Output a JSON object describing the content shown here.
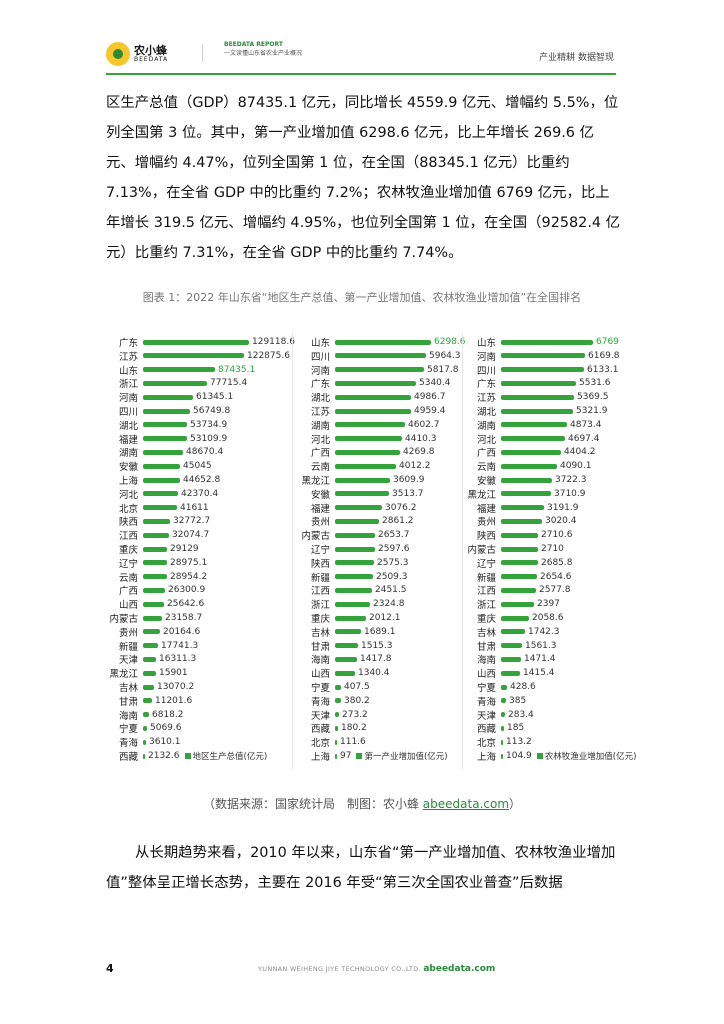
{
  "header": {
    "logo_cn": "农小蜂",
    "logo_en": "BEEDATA",
    "report_en": "BEEDATA REPORT",
    "report_cn": "一文读懂山东省农业产业概况",
    "tagline": "产业精耕 数据智现"
  },
  "paragraphs": {
    "p1": "区生产总值（GDP）87435.1 亿元，同比增长 4559.9 亿元、增幅约 5.5%，位列全国第 3 位。其中，第一产业增加值 6298.6 亿元，比上年增长 269.6 亿元、增幅约 4.47%，位列全国第 1 位，在全国（88345.1 亿元）比重约 7.13%，在全省 GDP 中的比重约 7.2%；农林牧渔业增加值 6769 亿元，比上年增长 319.5 亿元、增幅约 4.95%，也位列全国第 1 位，在全国（92582.4 亿元）比重约 7.31%，在全省 GDP 中的比重约 7.74%。",
    "p3": "从长期趋势来看，2010 年以来，山东省“第一产业增加值、农林牧渔业增加值”整体呈正增长态势，主要在 2016 年受“第三次全国农业普查”后数据"
  },
  "figure": {
    "title": "图表 1：2022 年山东省“地区生产总值、第一产业增加值、农林牧渔业增加值”在全国排名",
    "source_text": "（数据来源：国家统计局　制图：农小蜂 ",
    "source_link": "abeedata.com",
    "source_close": "）"
  },
  "chart_data": [
    {
      "type": "bar",
      "orientation": "horizontal",
      "series_name": "地区生产总值(亿元)",
      "highlight": "山东",
      "color": "#35a33b",
      "highlight_label_color": "#2aa53a",
      "categories": [
        "广东",
        "江苏",
        "山东",
        "浙江",
        "河南",
        "四川",
        "湖北",
        "福建",
        "湖南",
        "安徽",
        "上海",
        "河北",
        "北京",
        "陕西",
        "江西",
        "重庆",
        "辽宁",
        "云南",
        "广西",
        "山西",
        "内蒙古",
        "贵州",
        "新疆",
        "天津",
        "黑龙江",
        "吉林",
        "甘肃",
        "海南",
        "宁夏",
        "青海",
        "西藏"
      ],
      "values": [
        129118.6,
        122875.6,
        87435.1,
        77715.4,
        61345.1,
        56749.8,
        53734.9,
        53109.9,
        48670.4,
        45045,
        44652.8,
        42370.4,
        41611,
        32772.7,
        32074.7,
        29129,
        28975.1,
        28954.2,
        26300.9,
        25642.6,
        23158.7,
        20164.6,
        17741.3,
        16311.3,
        15901,
        13070.2,
        11201.6,
        6818.2,
        5069.6,
        3610.1,
        2132.6
      ]
    },
    {
      "type": "bar",
      "orientation": "horizontal",
      "series_name": "第一产业增加值(亿元)",
      "highlight": "山东",
      "color": "#35a33b",
      "highlight_label_color": "#2aa53a",
      "categories": [
        "山东",
        "四川",
        "河南",
        "广东",
        "湖北",
        "江苏",
        "湖南",
        "河北",
        "广西",
        "云南",
        "黑龙江",
        "安徽",
        "福建",
        "贵州",
        "内蒙古",
        "辽宁",
        "陕西",
        "新疆",
        "江西",
        "浙江",
        "重庆",
        "吉林",
        "甘肃",
        "海南",
        "山西",
        "宁夏",
        "青海",
        "天津",
        "西藏",
        "北京",
        "上海"
      ],
      "values": [
        6298.6,
        5964.3,
        5817.8,
        5340.4,
        4986.7,
        4959.4,
        4602.7,
        4410.3,
        4269.8,
        4012.2,
        3609.9,
        3513.7,
        3076.2,
        2861.2,
        2653.7,
        2597.6,
        2575.3,
        2509.3,
        2451.5,
        2324.8,
        2012.1,
        1689.1,
        1515.3,
        1417.8,
        1340.4,
        407.5,
        380.2,
        273.2,
        180.2,
        111.6,
        97
      ]
    },
    {
      "type": "bar",
      "orientation": "horizontal",
      "series_name": "农林牧渔业增加值(亿元)",
      "highlight": "山东",
      "color": "#35a33b",
      "highlight_label_color": "#2aa53a",
      "categories": [
        "山东",
        "河南",
        "四川",
        "广东",
        "江苏",
        "湖北",
        "湖南",
        "河北",
        "广西",
        "云南",
        "安徽",
        "黑龙江",
        "福建",
        "贵州",
        "陕西",
        "内蒙古",
        "辽宁",
        "新疆",
        "江西",
        "浙江",
        "重庆",
        "吉林",
        "甘肃",
        "海南",
        "山西",
        "宁夏",
        "青海",
        "天津",
        "西藏",
        "北京",
        "上海"
      ],
      "values": [
        6769,
        6169.8,
        6133.1,
        5531.6,
        5369.5,
        5321.9,
        4873.4,
        4697.4,
        4404.2,
        4090.1,
        3722.3,
        3710.9,
        3191.9,
        3020.4,
        2710.6,
        2710,
        2685.8,
        2654.6,
        2577.8,
        2397,
        2058.6,
        1742.3,
        1561.3,
        1471.4,
        1415.4,
        428.6,
        385,
        283.4,
        185,
        113.2,
        104.9
      ]
    }
  ],
  "footer": {
    "page_number": "4",
    "company": "YUNNAN WEIHENG JIYE TECHNOLOGY CO.,LTD.",
    "site": "abeedata.com"
  }
}
